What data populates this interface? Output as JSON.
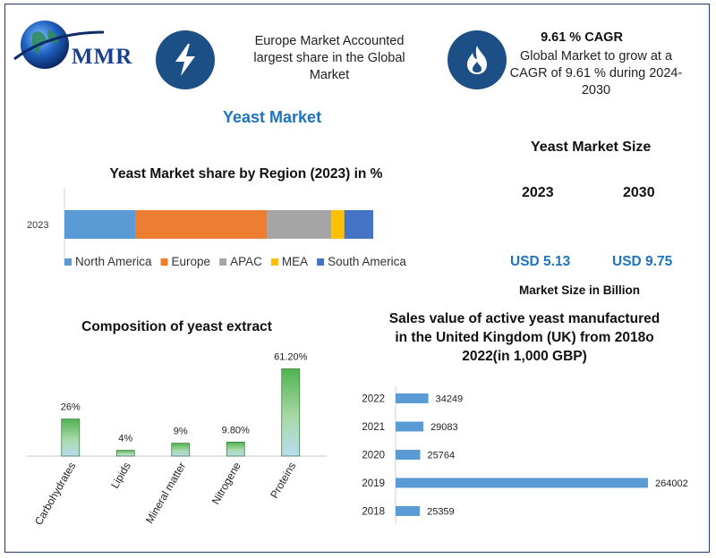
{
  "logo": {
    "text": "MMR"
  },
  "header": {
    "europe_text": "Europe Market Accounted largest share in the Global Market",
    "cagr_title": "9.61 % CAGR",
    "cagr_text": "Global Market to grow at a CAGR of 9.61 % during 2024-2030",
    "icon_left": "lightning-icon",
    "icon_right": "flame-icon"
  },
  "main_title": "Yeast Market",
  "market_size": {
    "title": "Yeast Market Size",
    "years": [
      "2023",
      "2030"
    ],
    "values": [
      "USD 5.13",
      "USD 9.75"
    ],
    "note": "Market Size in Billion"
  },
  "colors": {
    "north_america": "#5b9bd5",
    "europe": "#ed7d31",
    "apac": "#a5a5a5",
    "mea": "#ffc000",
    "south_america": "#4472c4",
    "uk_bar": "#5b9bd5",
    "accent_blue": "#1e73be",
    "icon_bg": "#1c4f86"
  },
  "chart_data": [
    {
      "type": "bar",
      "orientation": "horizontal-stacked",
      "title": "Yeast Market share by Region (2023) in %",
      "categories": [
        "2023"
      ],
      "series": [
        {
          "name": "North America",
          "values": [
            22
          ]
        },
        {
          "name": "Europe",
          "values": [
            41
          ]
        },
        {
          "name": "APAC",
          "values": [
            20
          ]
        },
        {
          "name": "MEA",
          "values": [
            4
          ]
        },
        {
          "name": "South America",
          "values": [
            9
          ]
        }
      ],
      "legend": "bottom"
    },
    {
      "type": "bar",
      "title": "Composition of yeast extract",
      "categories": [
        "Carbohydrates",
        "Lipids",
        "Mineral matter",
        "Nitrogene",
        "Proteins"
      ],
      "values": [
        26,
        4,
        9,
        9.8,
        61.2
      ],
      "labels": [
        "26%",
        "4%",
        "9%",
        "9.80%",
        "61.20%"
      ],
      "ylim": [
        0,
        64
      ]
    },
    {
      "type": "bar",
      "orientation": "horizontal",
      "title": "Sales value of active yeast manufactured in the United Kingdom (UK) from 2018o 2022(in 1,000 GBP)",
      "categories": [
        "2022",
        "2021",
        "2020",
        "2019",
        "2018"
      ],
      "values": [
        34249,
        29083,
        25764,
        264002,
        25359
      ],
      "xlim": [
        0,
        264002
      ]
    }
  ]
}
